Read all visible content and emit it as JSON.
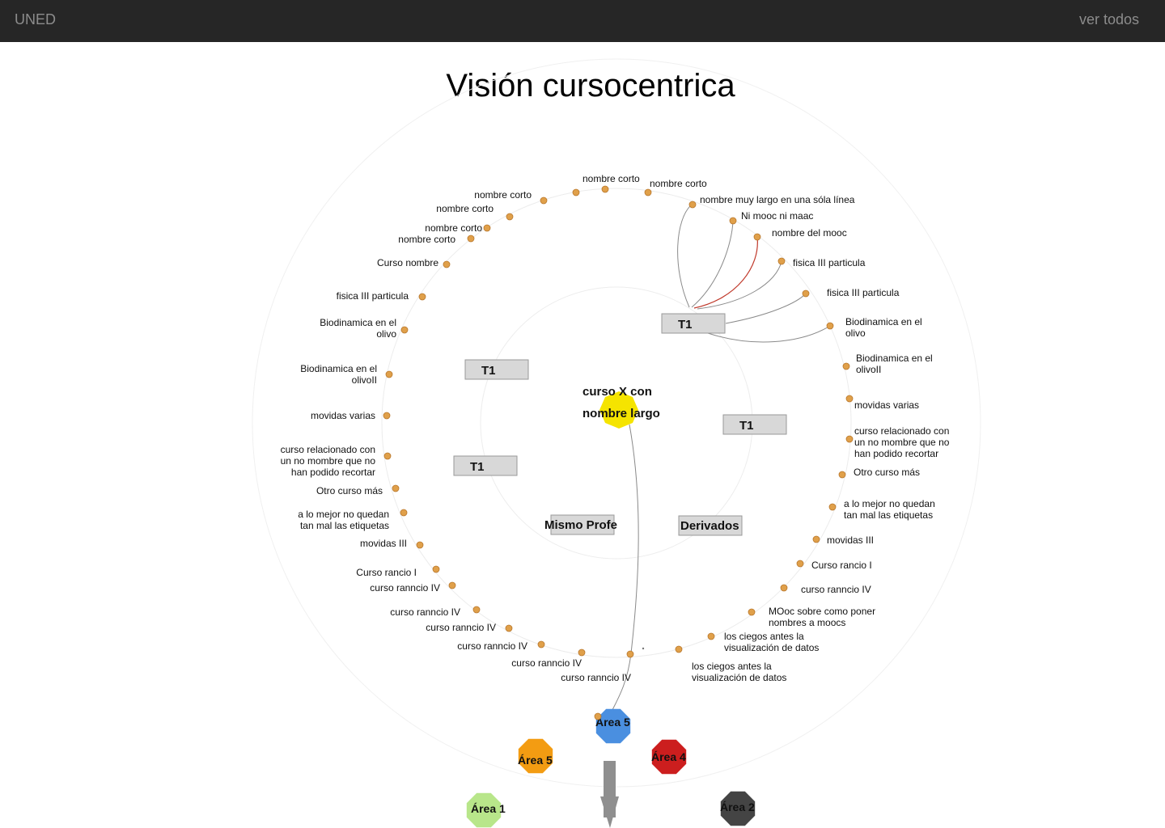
{
  "header": {
    "brand": "UNED",
    "see_all": "ver todos"
  },
  "page": {
    "title": "Visión cursocentrica"
  },
  "center_course": {
    "line1": "curso X con",
    "line2": "nombre largo",
    "color": "#f5e400"
  },
  "group_boxes": {
    "t1_a": "T1",
    "t1_b": "T1",
    "t1_c": "T1",
    "t1_d": "T1",
    "same_prof": "Mismo Profe",
    "derived": "Derivados"
  },
  "courses": [
    {
      "l1": "nombre corto"
    },
    {
      "l1": "nombre corto"
    },
    {
      "l1": "nombre muy largo en una sóla línea"
    },
    {
      "l1": "Ni mooc ni maac"
    },
    {
      "l1": "nombre del mooc"
    },
    {
      "l1": "fisica III particula"
    },
    {
      "l1": "fisica III particula"
    },
    {
      "l1": "Biodinamica en el",
      "l2": "olivo"
    },
    {
      "l1": "Biodinamica en el",
      "l2": "olivoII"
    },
    {
      "l1": "movidas varias"
    },
    {
      "l1": "curso relacionado con",
      "l2": "un no mombre que no",
      "l3": "han podido recortar"
    },
    {
      "l1": "Otro curso  más"
    },
    {
      "l1": "a lo mejor no quedan",
      "l2": "tan mal las etiquetas"
    },
    {
      "l1": "movidas III"
    },
    {
      "l1": "Curso rancio I"
    },
    {
      "l1": "curso ranncio IV"
    },
    {
      "l1": "MOoc sobre como poner",
      "l2": "nombres a moocs"
    },
    {
      "l1": "los ciegos antes la",
      "l2": "visualización de datos"
    },
    {
      "l1": "los ciegos antes la",
      "l2": "visualización de datos"
    },
    {
      "l1": "curso ranncio IV"
    },
    {
      "l1": "curso ranncio IV"
    },
    {
      "l1": "curso ranncio IV"
    },
    {
      "l1": "curso ranncio IV"
    },
    {
      "l1": "curso ranncio IV"
    },
    {
      "l1": "curso ranncio IV"
    },
    {
      "l1": "Curso rancio I"
    },
    {
      "l1": "movidas III"
    },
    {
      "l1": "a lo mejor no quedan",
      "l2": "tan mal las etiquetas"
    },
    {
      "l1": "Otro curso  más"
    },
    {
      "l1": "curso relacionado con",
      "l2": "un no mombre que no",
      "l3": "han podido recortar"
    },
    {
      "l1": "movidas varias"
    },
    {
      "l1": "Biodinamica en el",
      "l2": "olivoII"
    },
    {
      "l1": "Biodinamica en el",
      "l2": "olivo"
    },
    {
      "l1": "fisica III particula"
    },
    {
      "l1": "Curso nombre"
    },
    {
      "l1": "nombre corto"
    },
    {
      "l1": "nombre corto"
    },
    {
      "l1": "nombre corto"
    },
    {
      "l1": "nombre corto"
    }
  ],
  "areas": [
    {
      "label": "Área 5",
      "color": "#4a8fe0"
    },
    {
      "label": "Área 5",
      "color": "#f39c12"
    },
    {
      "label": "Área 4",
      "color": "#cc1e1e"
    },
    {
      "label": "Área 1",
      "color": "#b8e68a"
    },
    {
      "label": "Área 2",
      "color": "#444444"
    }
  ],
  "colors": {
    "dot": "#e0a04a",
    "dot_stroke": "#b8772c",
    "link": "#8a8a8a",
    "highlight_link": "#c0392b",
    "box_fill": "#d8d8d8",
    "ring": "#ececec"
  }
}
